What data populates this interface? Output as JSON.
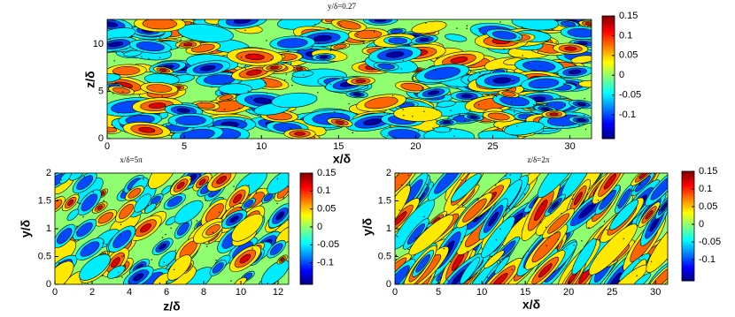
{
  "chart_data": [
    {
      "type": "contour",
      "title": "y/δ=0.27",
      "xlabel": "x/δ",
      "ylabel": "z/δ",
      "xlim": [
        0,
        31.4
      ],
      "xticks": [
        0,
        5,
        10,
        15,
        20,
        25,
        30
      ],
      "ylim": [
        0,
        12.6
      ],
      "yticks": [
        0,
        5,
        10
      ],
      "clim": [
        -0.16,
        0.15
      ],
      "cticks": [
        -0.1,
        -0.05,
        0,
        0.05,
        0.1,
        0.15
      ]
    },
    {
      "type": "contour",
      "title": "x/δ=5π",
      "xlabel": "z/δ",
      "ylabel": "y/δ",
      "xlim": [
        0,
        12.57
      ],
      "xticks": [
        0,
        2,
        4,
        6,
        8,
        10,
        12
      ],
      "ylim": [
        0,
        2
      ],
      "yticks": [
        0,
        0.5,
        1,
        1.5,
        2
      ],
      "clim": [
        -0.16,
        0.15
      ],
      "cticks": [
        -0.1,
        -0.05,
        0,
        0.05,
        0.1,
        0.15
      ]
    },
    {
      "type": "contour",
      "title": "z/δ=2π",
      "xlabel": "x/δ",
      "ylabel": "y/δ",
      "xlim": [
        0,
        31.4
      ],
      "xticks": [
        0,
        5,
        10,
        15,
        20,
        25,
        30
      ],
      "ylim": [
        0,
        2
      ],
      "yticks": [
        0,
        0.5,
        1,
        1.5,
        2
      ],
      "clim": [
        -0.16,
        0.15
      ],
      "cticks": [
        -0.1,
        -0.05,
        0,
        0.05,
        0.1,
        0.15
      ]
    }
  ]
}
